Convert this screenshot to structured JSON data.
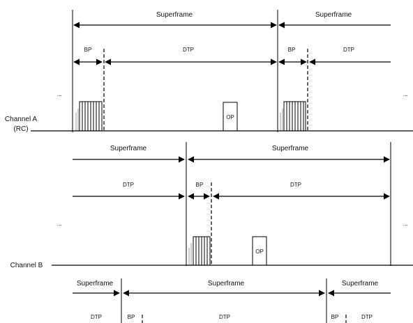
{
  "labels": {
    "superframe": "Superframe",
    "bp": "BP",
    "dtp": "DTP",
    "op": "OP",
    "ellipsis": "...",
    "channel_a": "Channel A",
    "channel_a_sub": "(RC)",
    "channel_b": "Channel B"
  }
}
